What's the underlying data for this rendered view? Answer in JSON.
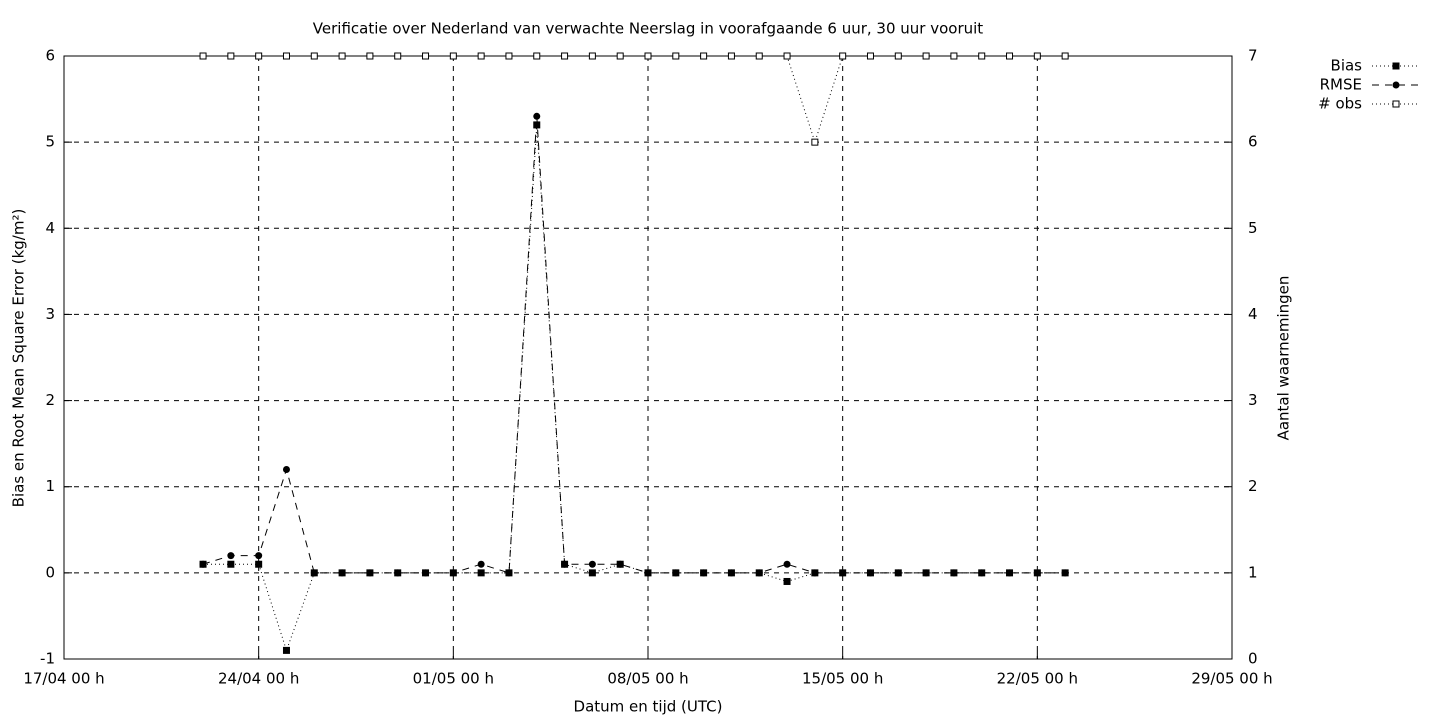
{
  "chart_data": {
    "type": "line",
    "title": "Verificatie over Nederland van verwachte Neerslag in voorafgaande 6 uur, 30 uur vooruit",
    "x_label": "Datum en tijd (UTC)",
    "y_label": "Bias en Root Mean Square Error (kg/m²)",
    "y2_label": "Aantal waarnemingen",
    "x": [
      "22/04 00 h",
      "23/04 00 h",
      "24/04 00 h",
      "25/04 00 h",
      "26/04 00 h",
      "27/04 00 h",
      "28/04 00 h",
      "29/04 00 h",
      "30/04 00 h",
      "01/05 00 h",
      "02/05 00 h",
      "03/05 00 h",
      "04/05 00 h",
      "05/05 00 h",
      "06/05 00 h",
      "07/05 00 h",
      "08/05 00 h",
      "09/05 00 h",
      "10/05 00 h",
      "11/05 00 h",
      "12/05 00 h",
      "13/05 00 h",
      "14/05 00 h",
      "15/05 00 h",
      "16/05 00 h",
      "17/05 00 h",
      "18/05 00 h",
      "19/05 00 h",
      "20/05 00 h",
      "21/05 00 h",
      "22/05 00 h",
      "23/05 00 h"
    ],
    "series": [
      {
        "name": "Bias",
        "color": "#000000",
        "line_style": "dotted",
        "marker": "square",
        "values": [
          0.1,
          0.1,
          0.1,
          -0.9,
          0,
          0,
          0,
          0,
          0,
          0,
          0,
          0,
          5.2,
          0.1,
          0,
          0.1,
          0,
          0,
          0,
          0,
          0,
          -0.1,
          0,
          0,
          0,
          0,
          0,
          0,
          0,
          0,
          0,
          0
        ]
      },
      {
        "name": "RMSE",
        "color": "#000000",
        "line_style": "dashed",
        "marker": "circle",
        "values": [
          0.1,
          0.2,
          0.2,
          1.2,
          0,
          0,
          0,
          0,
          0,
          0,
          0.1,
          0,
          5.3,
          0.1,
          0.1,
          0.1,
          0,
          0,
          0,
          0,
          0,
          0.1,
          0,
          0,
          0,
          0,
          0,
          0,
          0,
          0,
          0,
          0
        ]
      },
      {
        "name": "# obs",
        "color": "#000000",
        "line_style": "dotted",
        "marker": "open-square",
        "axis": "y2",
        "values": [
          7,
          7,
          7,
          7,
          7,
          7,
          7,
          7,
          7,
          7,
          7,
          7,
          7,
          7,
          7,
          7,
          7,
          7,
          7,
          7,
          7,
          7,
          6,
          7,
          7,
          7,
          7,
          7,
          7,
          7,
          7,
          7
        ]
      }
    ],
    "xlim": [
      "17/04 00 h",
      "29/05 00 h"
    ],
    "xticks": [
      "17/04 00 h",
      "24/04 00 h",
      "01/05 00 h",
      "08/05 00 h",
      "15/05 00 h",
      "22/05 00 h",
      "29/05 00 h"
    ],
    "ylim": [
      -1,
      6
    ],
    "yticks": [
      -1,
      0,
      1,
      2,
      3,
      4,
      5,
      6
    ],
    "y2lim": [
      0,
      7
    ],
    "y2ticks": [
      0,
      1,
      2,
      3,
      4,
      5,
      6,
      7
    ],
    "grid": true,
    "legend": "outside-top-right"
  }
}
